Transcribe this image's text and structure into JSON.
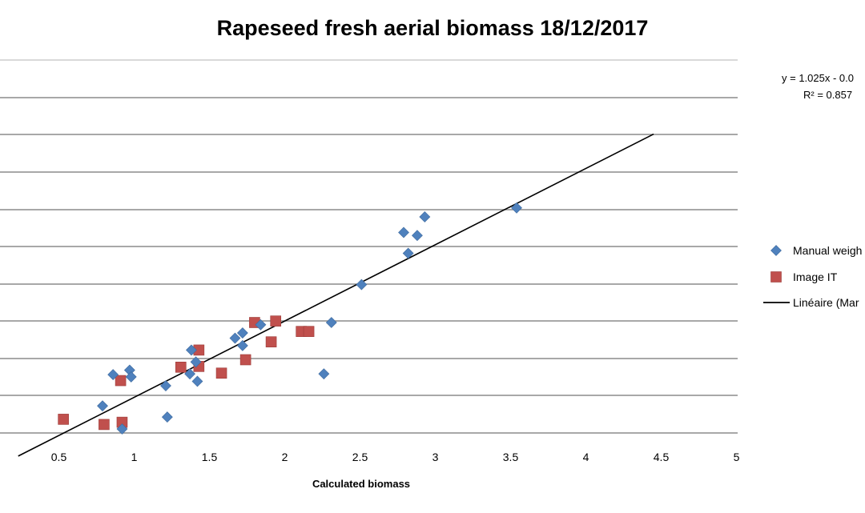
{
  "chart_data": {
    "type": "scatter",
    "title": "Rapeseed fresh aerial biomass 18/12/2017",
    "xlabel": "Calculated biomass",
    "ylabel": "",
    "xlim": [
      0,
      5
    ],
    "xticks": [
      0.5,
      1,
      1.5,
      2,
      2.5,
      3,
      3.5,
      4,
      4.5,
      5
    ],
    "xtick_labels": [
      "0.5",
      "1",
      "1.5",
      "2",
      "2.5",
      "3",
      "3.5",
      "4",
      "4.5",
      "5"
    ],
    "ylim": [
      0,
      5
    ],
    "grid": true,
    "legend_position": "right",
    "series": [
      {
        "name": "Manual weigh",
        "marker": "diamond",
        "color": "#4f81bd",
        "points": [
          [
            0.79,
            0.88
          ],
          [
            0.86,
            1.3
          ],
          [
            0.92,
            0.57
          ],
          [
            0.97,
            1.36
          ],
          [
            0.98,
            1.27
          ],
          [
            1.21,
            1.15
          ],
          [
            1.22,
            0.73
          ],
          [
            1.37,
            1.31
          ],
          [
            1.38,
            1.63
          ],
          [
            1.41,
            1.47
          ],
          [
            1.42,
            1.21
          ],
          [
            1.67,
            1.79
          ],
          [
            1.72,
            1.69
          ],
          [
            1.72,
            1.86
          ],
          [
            1.84,
            1.97
          ],
          [
            2.26,
            1.31
          ],
          [
            2.31,
            2.0
          ],
          [
            2.51,
            2.51
          ],
          [
            2.79,
            3.21
          ],
          [
            2.82,
            2.93
          ],
          [
            2.88,
            3.17
          ],
          [
            2.93,
            3.42
          ],
          [
            3.54,
            3.54
          ]
        ]
      },
      {
        "name": "Image IT",
        "marker": "square",
        "color": "#c0504d",
        "points": [
          [
            0.53,
            0.7
          ],
          [
            0.8,
            0.63
          ],
          [
            0.91,
            1.22
          ],
          [
            0.92,
            0.66
          ],
          [
            1.31,
            1.4
          ],
          [
            1.43,
            1.41
          ],
          [
            1.43,
            1.63
          ],
          [
            1.58,
            1.32
          ],
          [
            1.74,
            1.5
          ],
          [
            1.8,
            2.0
          ],
          [
            1.91,
            1.74
          ],
          [
            1.94,
            2.02
          ],
          [
            2.11,
            1.88
          ],
          [
            2.16,
            1.88
          ]
        ]
      }
    ],
    "trendline": {
      "name": "Linéaire (Manual weigh)",
      "color": "#000000",
      "x_range": [
        0.23,
        4.45
      ],
      "equation_label": "y = 1.025x - 0.0",
      "r2_label": "R² = 0.857",
      "slope": 1.025,
      "intercept": -0.03
    },
    "legend": [
      {
        "label": "Manual weigh",
        "marker": "diamond",
        "color": "#4f81bd"
      },
      {
        "label": "Image IT",
        "marker": "square",
        "color": "#c0504d"
      },
      {
        "label": "Linéaire (Mar",
        "marker": "line",
        "color": "#000000"
      }
    ]
  }
}
